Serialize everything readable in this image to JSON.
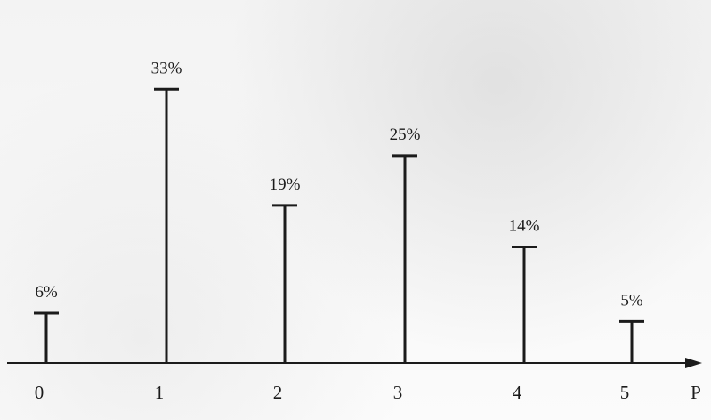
{
  "chart_data": {
    "type": "bar",
    "x": [
      0,
      1,
      2,
      3,
      4,
      5
    ],
    "values": [
      6,
      33,
      19,
      25,
      14,
      5
    ],
    "value_labels": [
      "6%",
      "33%",
      "19%",
      "25%",
      "14%",
      "5%"
    ],
    "tick_labels": [
      "0",
      "1",
      "2",
      "3",
      "4",
      "5"
    ],
    "xlabel": "P",
    "ylabel": "",
    "title": "",
    "ylim": [
      0,
      40
    ],
    "grid": false,
    "legend": "none"
  },
  "colors": {
    "ink": "#1b1b1b",
    "paper": "#f7f7f7"
  }
}
